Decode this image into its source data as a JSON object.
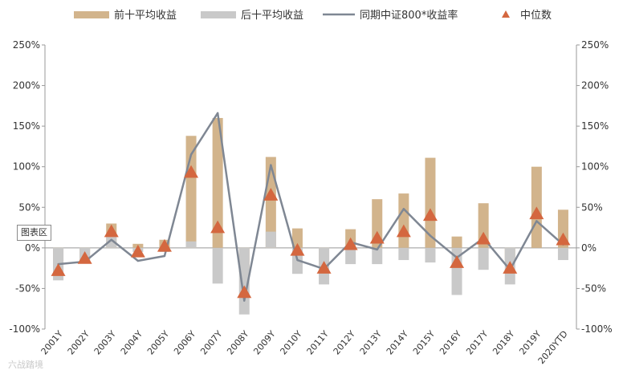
{
  "chart_data": {
    "type": "bar",
    "categories": [
      "2001Y",
      "2002Y",
      "2003Y",
      "2004Y",
      "2005Y",
      "2006Y",
      "2007Y",
      "2008Y",
      "2009Y",
      "2010Y",
      "2011Y",
      "2012Y",
      "2013Y",
      "2014Y",
      "2015Y",
      "2016Y",
      "2017Y",
      "2018Y",
      "2019Y",
      "2020YTD"
    ],
    "series": [
      {
        "name": "前十平均收益",
        "kind": "bar",
        "color": "#d2b48c",
        "values": [
          -30,
          -15,
          30,
          5,
          10,
          138,
          160,
          -30,
          112,
          24,
          -20,
          23,
          60,
          67,
          111,
          14,
          55,
          -15,
          100,
          47
        ]
      },
      {
        "name": "后十平均收益",
        "kind": "bar",
        "color": "#c9c9c9",
        "values": [
          -40,
          -17,
          15,
          -5,
          -5,
          8,
          -44,
          -82,
          20,
          -32,
          -45,
          -20,
          -20,
          -15,
          -18,
          -58,
          -27,
          -45,
          0,
          -15
        ]
      },
      {
        "name": "同期中证800*收益率",
        "kind": "line",
        "color": "#7f8793",
        "values": [
          -20,
          -17,
          10,
          -16,
          -10,
          115,
          166,
          -65,
          102,
          -15,
          -26,
          7,
          -2,
          48,
          15,
          -12,
          12,
          -27,
          33,
          4
        ]
      },
      {
        "name": "中位数",
        "kind": "marker",
        "color": "#d4673f",
        "values": [
          -28,
          -13,
          20,
          -5,
          2,
          93,
          25,
          -55,
          65,
          -3,
          -25,
          4,
          12,
          20,
          40,
          -18,
          11,
          -25,
          42,
          10
        ]
      }
    ],
    "yticks": [
      "-100%",
      "-50%",
      "0%",
      "50%",
      "100%",
      "150%",
      "200%",
      "250%"
    ],
    "ylim": [
      -100,
      250
    ],
    "legend_position": "top",
    "grid": false
  },
  "tag_label": "图表区",
  "watermark": "六战踏境"
}
